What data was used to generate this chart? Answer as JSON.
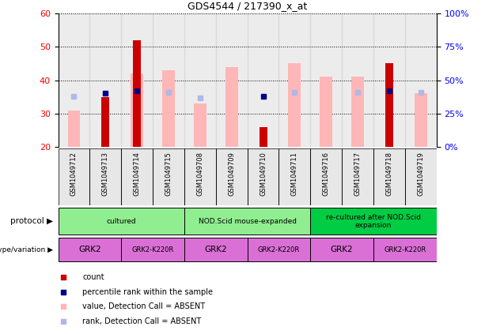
{
  "title": "GDS4544 / 217390_x_at",
  "samples": [
    "GSM1049712",
    "GSM1049713",
    "GSM1049714",
    "GSM1049715",
    "GSM1049708",
    "GSM1049709",
    "GSM1049710",
    "GSM1049711",
    "GSM1049716",
    "GSM1049717",
    "GSM1049718",
    "GSM1049719"
  ],
  "count": [
    null,
    35,
    52,
    null,
    null,
    null,
    26,
    null,
    null,
    null,
    45,
    null
  ],
  "percentile_rank": [
    null,
    40,
    42,
    null,
    null,
    null,
    38,
    null,
    null,
    null,
    42,
    null
  ],
  "value_absent": [
    31,
    null,
    42,
    43,
    33,
    44,
    null,
    45,
    41,
    41,
    null,
    36
  ],
  "rank_absent": [
    38,
    null,
    null,
    41,
    37,
    null,
    null,
    41,
    null,
    41,
    null,
    41
  ],
  "ylim_left": [
    20,
    60
  ],
  "ylim_right": [
    0,
    100
  ],
  "yticks_left": [
    20,
    30,
    40,
    50,
    60
  ],
  "yticks_right": [
    0,
    25,
    50,
    75,
    100
  ],
  "ytick_right_labels": [
    "0%",
    "25%",
    "50%",
    "75%",
    "100%"
  ],
  "color_count": "#cc0000",
  "color_percentile": "#00008b",
  "color_value_absent": "#ffb6b6",
  "color_rank_absent": "#b0b8e8",
  "protocol_groups": [
    {
      "label": "cultured",
      "start": 0,
      "end": 3,
      "color": "#90ee90"
    },
    {
      "label": "NOD.Scid mouse-expanded",
      "start": 4,
      "end": 7,
      "color": "#90ee90"
    },
    {
      "label": "re-cultured after NOD.Scid\nexpansion",
      "start": 8,
      "end": 11,
      "color": "#008000"
    }
  ],
  "genotype_groups": [
    {
      "label": "GRK2",
      "start": 0,
      "end": 1
    },
    {
      "label": "GRK2-K220R",
      "start": 2,
      "end": 3
    },
    {
      "label": "GRK2",
      "start": 4,
      "end": 5
    },
    {
      "label": "GRK2-K220R",
      "start": 6,
      "end": 7
    },
    {
      "label": "GRK2",
      "start": 8,
      "end": 9
    },
    {
      "label": "GRK2-K220R",
      "start": 10,
      "end": 11
    }
  ]
}
